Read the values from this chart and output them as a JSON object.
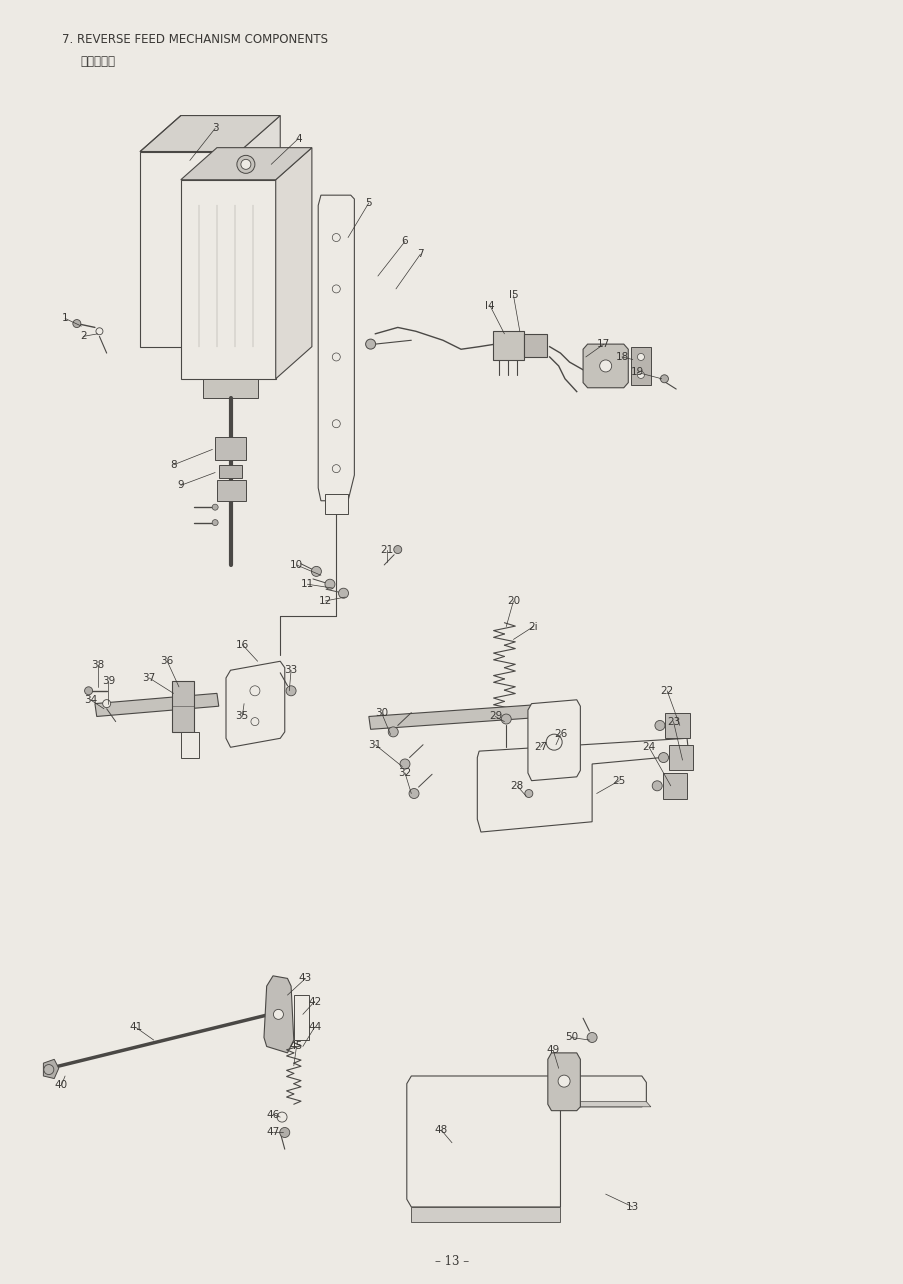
{
  "title": "7. REVERSE FEED MECHANISM COMPONENTS",
  "subtitle": "逆送り関係",
  "page_number": "– 13 –",
  "bg_color": "#edeae4",
  "line_color": "#4a4845",
  "text_color": "#3a3835",
  "title_fontsize": 8.5,
  "subtitle_fontsize": 8.5,
  "page_fontsize": 8.5,
  "label_fontsize": 7.5,
  "figsize": [
    9.04,
    12.84
  ],
  "dpi": 100
}
